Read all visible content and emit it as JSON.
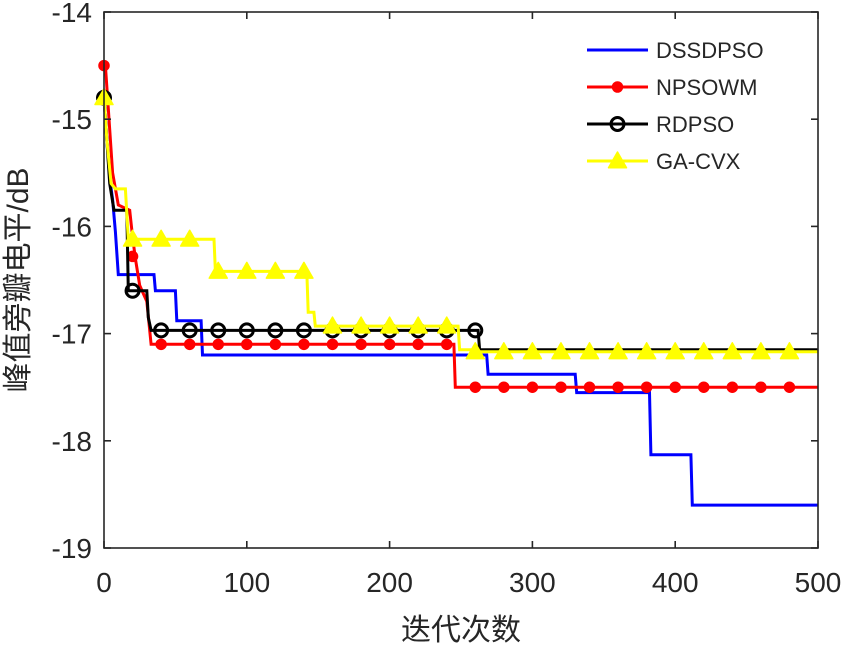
{
  "chart_data": {
    "type": "line",
    "title": "",
    "xlabel": "迭代次数",
    "ylabel": "峰值旁瓣电平/dB",
    "xlim": [
      0,
      500
    ],
    "ylim": [
      -19,
      -14
    ],
    "xticks": [
      0,
      100,
      200,
      300,
      400,
      500
    ],
    "yticks": [
      -14,
      -15,
      -16,
      -17,
      -18,
      -19
    ],
    "xtick_labels": [
      "0",
      "100",
      "200",
      "300",
      "400",
      "500"
    ],
    "ytick_labels": [
      "-14",
      "-15",
      "-16",
      "-17",
      "-18",
      "-19"
    ],
    "grid": false,
    "legend_position": "top-right",
    "series": [
      {
        "name": "DSSDPSO",
        "color": "#0000ff",
        "marker": "none",
        "x": [
          0,
          2,
          4,
          6,
          8,
          10,
          22,
          23,
          35,
          36,
          42,
          43,
          50,
          51,
          68,
          69,
          244,
          245,
          268,
          269,
          330,
          331,
          382,
          383,
          411,
          412,
          500
        ],
        "y": [
          -14.8,
          -15.2,
          -15.55,
          -15.75,
          -16.05,
          -16.45,
          -16.45,
          -16.45,
          -16.45,
          -16.6,
          -16.6,
          -16.6,
          -16.6,
          -16.88,
          -16.88,
          -17.2,
          -17.2,
          -17.2,
          -17.2,
          -17.38,
          -17.38,
          -17.55,
          -17.55,
          -18.13,
          -18.13,
          -18.6,
          -18.6
        ]
      },
      {
        "name": "NPSOWM",
        "color": "#ff0000",
        "marker": "filled-circle",
        "x": [
          0,
          1,
          3,
          6,
          10,
          18,
          20,
          22,
          25,
          30,
          33,
          40,
          245,
          246,
          500
        ],
        "y": [
          -14.5,
          -14.5,
          -14.9,
          -15.5,
          -15.8,
          -15.85,
          -16.1,
          -16.3,
          -16.55,
          -16.7,
          -17.1,
          -17.1,
          -17.1,
          -17.5,
          -17.5
        ],
        "markers_x": [
          0,
          20,
          40,
          60,
          80,
          100,
          120,
          140,
          160,
          180,
          200,
          220,
          240,
          260,
          280,
          300,
          320,
          340,
          360,
          380,
          400,
          420,
          440,
          460,
          480
        ],
        "markers_y": [
          -14.5,
          -16.28,
          -17.1,
          -17.1,
          -17.1,
          -17.1,
          -17.1,
          -17.1,
          -17.1,
          -17.1,
          -17.1,
          -17.1,
          -17.1,
          -17.5,
          -17.5,
          -17.5,
          -17.5,
          -17.5,
          -17.5,
          -17.5,
          -17.5,
          -17.5,
          -17.5,
          -17.5,
          -17.5
        ]
      },
      {
        "name": "RDPSO",
        "color": "#000000",
        "marker": "open-circle",
        "x": [
          0,
          4,
          7,
          10,
          16,
          17,
          30,
          31,
          33,
          262,
          263,
          500
        ],
        "y": [
          -14.8,
          -15.6,
          -15.85,
          -15.85,
          -15.85,
          -16.6,
          -16.6,
          -16.85,
          -16.97,
          -16.97,
          -17.15,
          -17.15
        ],
        "markers_x": [
          0,
          20,
          40,
          60,
          80,
          100,
          120,
          140,
          160,
          180,
          200,
          220,
          240,
          260
        ],
        "markers_y": [
          -14.8,
          -16.6,
          -16.97,
          -16.97,
          -16.97,
          -16.97,
          -16.97,
          -16.97,
          -16.97,
          -16.97,
          -16.97,
          -16.97,
          -16.97,
          -16.97
        ]
      },
      {
        "name": "GA-CVX",
        "color": "#ffff00",
        "marker": "filled-triangle",
        "x": [
          0,
          2,
          5,
          8,
          15,
          17,
          77,
          78,
          142,
          143,
          147,
          148,
          248,
          249,
          258,
          259,
          500
        ],
        "y": [
          -14.8,
          -15.2,
          -15.6,
          -15.65,
          -15.65,
          -16.12,
          -16.12,
          -16.42,
          -16.42,
          -16.8,
          -16.8,
          -16.93,
          -16.93,
          -17.15,
          -17.15,
          -17.17,
          -17.17
        ],
        "markers_x": [
          0,
          20,
          40,
          60,
          80,
          100,
          120,
          140,
          160,
          180,
          200,
          220,
          240,
          260,
          280,
          300,
          320,
          340,
          360,
          380,
          400,
          420,
          440,
          460,
          480
        ],
        "markers_y": [
          -14.8,
          -16.12,
          -16.12,
          -16.12,
          -16.42,
          -16.42,
          -16.42,
          -16.42,
          -16.93,
          -16.93,
          -16.93,
          -16.93,
          -16.93,
          -17.17,
          -17.17,
          -17.17,
          -17.17,
          -17.17,
          -17.17,
          -17.17,
          -17.17,
          -17.17,
          -17.17,
          -17.17,
          -17.17
        ]
      }
    ]
  }
}
